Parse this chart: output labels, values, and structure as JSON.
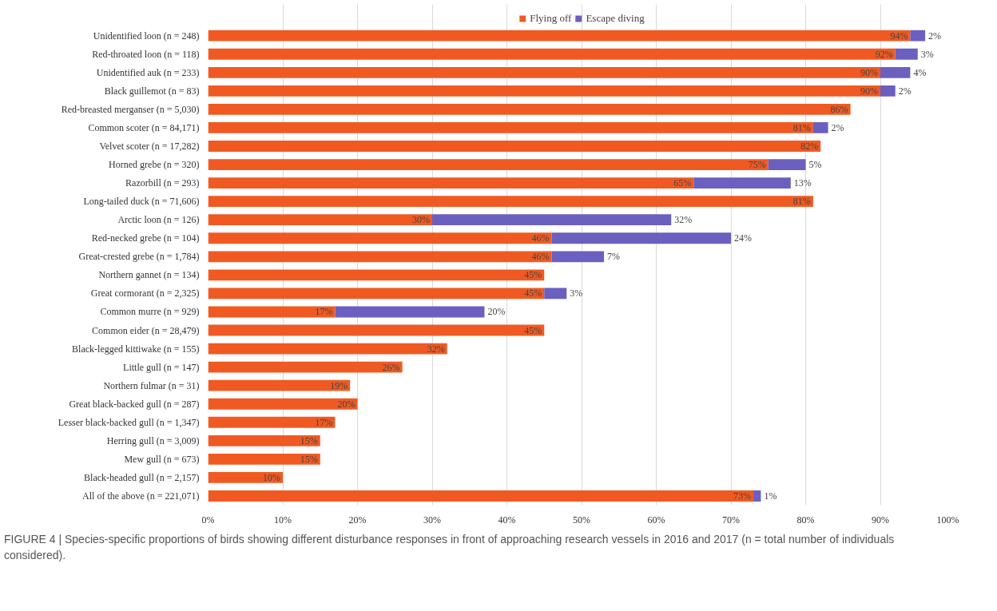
{
  "chart_data": {
    "type": "bar",
    "orientation": "horizontal",
    "stacked": true,
    "categories": [
      "Unidentified loon (n = 248)",
      "Red-throated loon (n = 118)",
      "Unidentified auk (n = 233)",
      "Black guillemot (n = 83)",
      "Red-breasted merganser (n = 5,030)",
      "Common scoter (n = 84,171)",
      "Velvet scoter (n = 17,282)",
      "Horned grebe (n = 320)",
      "Razorbill (n = 293)",
      "Long-tailed duck (n = 71,606)",
      "Arctic loon (n = 126)",
      "Red-necked grebe (n = 104)",
      "Great-crested grebe (n = 1,784)",
      "Northern gannet (n = 134)",
      "Great cormorant (n = 2,325)",
      "Common murre (n = 929)",
      "Common eider (n = 28,479)",
      "Black-legged kittiwake (n = 155)",
      "Little gull (n = 147)",
      "Northern fulmar (n = 31)",
      "Great black-backed gull (n = 287)",
      "Lesser black-backed gull (n = 1,347)",
      "Herring gull (n = 3,009)",
      "Mew gull (n = 673)",
      "Black-headed gull (n = 2,157)",
      "All of the above (n = 221,071)"
    ],
    "series": [
      {
        "name": "Flying off",
        "color": "#f05a22",
        "values": [
          94,
          92,
          90,
          90,
          86,
          81,
          82,
          75,
          65,
          81,
          30,
          46,
          46,
          45,
          45,
          17,
          45,
          32,
          26,
          19,
          20,
          17,
          15,
          15,
          10,
          73
        ],
        "value_labels": [
          "94%",
          "92%",
          "90%",
          "90%",
          "86%",
          "81%",
          "82%",
          "75%",
          "65%",
          "81%",
          "30%",
          "46%",
          "46%",
          "45%",
          "45%",
          "17%",
          "45%",
          "32%",
          "26%",
          "19%",
          "20%",
          "17%",
          "15%",
          "15%",
          "10%",
          "73%"
        ]
      },
      {
        "name": "Escape diving",
        "color": "#6b5fc0",
        "values": [
          2,
          3,
          4,
          2,
          null,
          2,
          null,
          5,
          13,
          null,
          32,
          24,
          7,
          null,
          3,
          20,
          null,
          null,
          null,
          null,
          null,
          null,
          null,
          null,
          null,
          1
        ],
        "value_labels": [
          "2%",
          "3%",
          "4%",
          "2%",
          null,
          "2%",
          null,
          "5%",
          "13%",
          null,
          "32%",
          "24%",
          "7%",
          null,
          "3%",
          "20%",
          null,
          null,
          null,
          null,
          null,
          null,
          null,
          null,
          null,
          "1%"
        ]
      }
    ],
    "xlim": [
      0,
      100
    ],
    "xticks": [
      {
        "value": 0,
        "label": "0%"
      },
      {
        "value": 10,
        "label": "10%"
      },
      {
        "value": 20,
        "label": "20%"
      },
      {
        "value": 30,
        "label": "30%"
      },
      {
        "value": 40,
        "label": "40%"
      },
      {
        "value": 50,
        "label": "50%"
      },
      {
        "value": 60,
        "label": "60%"
      },
      {
        "value": 70,
        "label": "70%"
      },
      {
        "value": 80,
        "label": "80%"
      },
      {
        "value": 90,
        "label": "90%"
      },
      {
        "value": 100,
        "label": "100%"
      }
    ],
    "grid": "x",
    "legend": "top",
    "annotations": [
      "FIGURE 4 | Species-specific proportions of birds showing different disturbance responses in front of approaching research vessels in 2016 and 2017 (n = total number of individuals considered)."
    ]
  }
}
